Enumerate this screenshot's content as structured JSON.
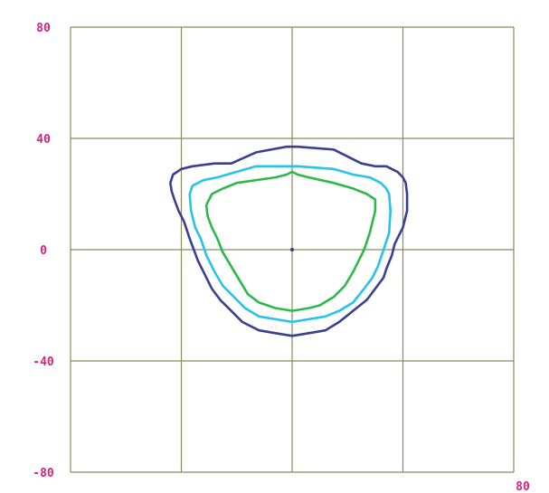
{
  "chart_data": {
    "type": "line",
    "title": "",
    "xlabel": "",
    "ylabel": "",
    "xlim": [
      -80,
      80
    ],
    "ylim": [
      -80,
      80
    ],
    "grid": true,
    "x_ticks": [
      -80,
      -40,
      0,
      40,
      80
    ],
    "y_ticks": [
      80,
      40,
      0,
      -40,
      -80
    ],
    "y_tick_labels": [
      "80",
      "40",
      "0",
      "-40",
      "-80"
    ],
    "x_tick_labels_visible": [
      {
        "value": 80,
        "label": "80"
      }
    ],
    "colors": {
      "grid": "#8a8a5a",
      "tick_label": "#e0207a",
      "outer_contour": "#3a3f8f",
      "middle_contour": "#27c3ea",
      "inner_contour": "#2db84a",
      "origin_point": "#3a3f8f"
    },
    "series": [
      {
        "key": "outer",
        "closed": true,
        "x": [
          -13,
          -2,
          0,
          2,
          15,
          25,
          30,
          34,
          38,
          40,
          41,
          41.5,
          41.5,
          40,
          37,
          36,
          34,
          33,
          30,
          27,
          22,
          17,
          12,
          6,
          0,
          -6,
          -12,
          -18,
          -22,
          -26,
          -29,
          -31,
          -34,
          -37,
          -39,
          -41,
          -42.5,
          -43.5,
          -44,
          -43,
          -40,
          -36,
          -28,
          -22
        ],
        "y": [
          35,
          37,
          37,
          37,
          36,
          31,
          30,
          30,
          28,
          26,
          24,
          20,
          14,
          8,
          2,
          -2,
          -7,
          -10,
          -14,
          -18,
          -22,
          -26,
          -29,
          -30,
          -31,
          -30,
          -29,
          -26,
          -22,
          -18,
          -14,
          -10,
          -4,
          4,
          10,
          14,
          18,
          21,
          24,
          27,
          29,
          30,
          31,
          31
        ]
      },
      {
        "key": "middle",
        "closed": true,
        "x": [
          -13,
          -2,
          0,
          2,
          15,
          22,
          28,
          32,
          34,
          35,
          35.5,
          35,
          33,
          31,
          29,
          26,
          22,
          17,
          12,
          6,
          0,
          -6,
          -12,
          -17,
          -21,
          -25,
          -28,
          -31,
          -33,
          -35,
          -36.5,
          -37,
          -36,
          -32,
          -27,
          -20
        ],
        "y": [
          30,
          30,
          30,
          30,
          29,
          27,
          26,
          24,
          22,
          20,
          14,
          6,
          0,
          -6,
          -10,
          -14,
          -19,
          -22,
          -24,
          -25,
          -26,
          -25,
          -24,
          -21,
          -17,
          -13,
          -8,
          -2,
          4,
          8,
          14,
          20,
          23,
          25,
          26,
          28
        ]
      },
      {
        "key": "inner",
        "closed": true,
        "x": [
          -13,
          -6,
          -2,
          0,
          2,
          6,
          15,
          22,
          27,
          30,
          30,
          28,
          26,
          24,
          22,
          19,
          15,
          10,
          6,
          0,
          -6,
          -12,
          -16,
          -19,
          -22,
          -25,
          -27,
          -29,
          -30.5,
          -31,
          -29,
          -25,
          -20
        ],
        "y": [
          25,
          26,
          27,
          28,
          27,
          26,
          24,
          22,
          20,
          18,
          14,
          6,
          0,
          -4,
          -8,
          -13,
          -17,
          -20,
          -21,
          -22,
          -21,
          -19,
          -16,
          -11,
          -6,
          -1,
          4,
          8,
          12,
          16,
          20,
          22,
          24
        ]
      }
    ],
    "origin_point": {
      "x": 0,
      "y": 0
    }
  }
}
